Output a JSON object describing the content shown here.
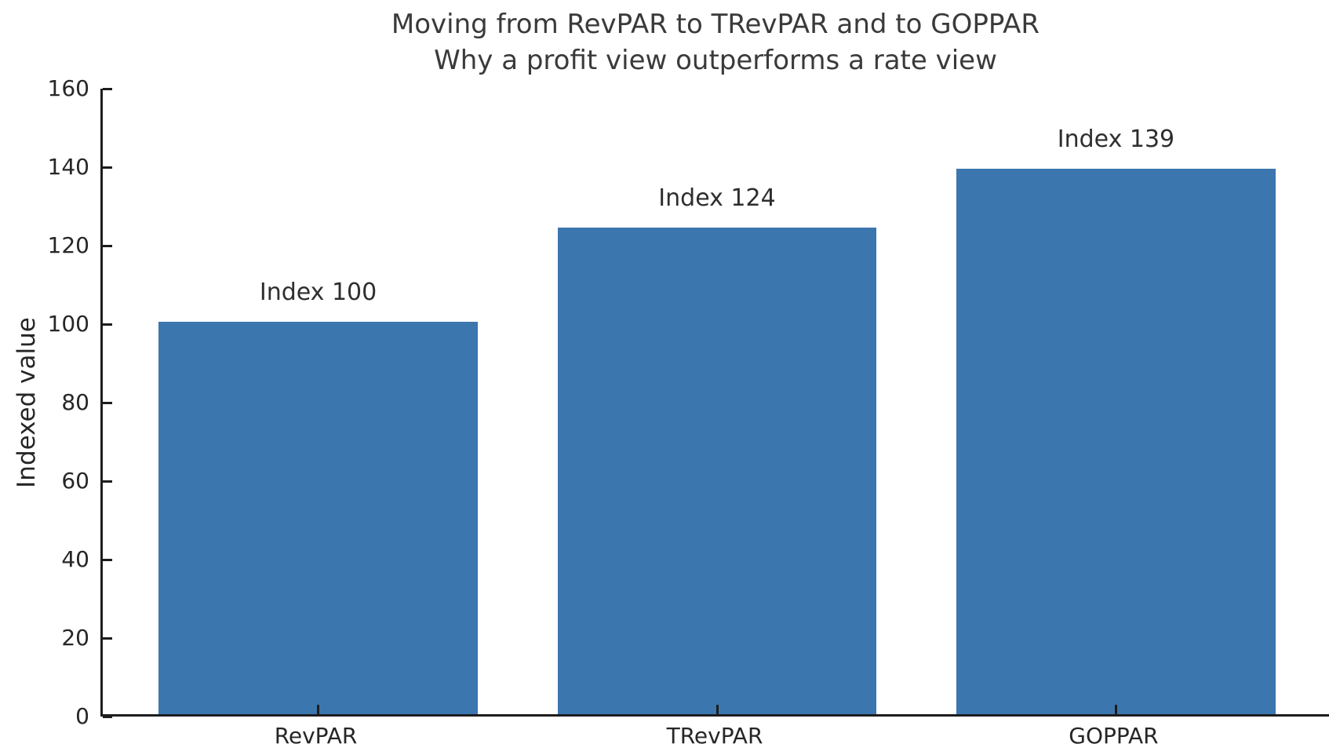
{
  "chart_data": {
    "type": "bar",
    "title": "Moving from RevPAR to TRevPAR and to GOPPAR",
    "subtitle": "Why a profit view outperforms a rate view",
    "categories": [
      "RevPAR",
      "TRevPAR",
      "GOPPAR"
    ],
    "values": [
      100,
      124,
      139
    ],
    "bar_labels": [
      "Index 100",
      "Index 124",
      "Index 139"
    ],
    "xlabel": "",
    "ylabel": "Indexed value",
    "ylim": [
      0,
      160
    ],
    "yticks": [
      0,
      20,
      40,
      60,
      80,
      100,
      120,
      140,
      160
    ],
    "grid": false,
    "legend": "none",
    "colors": {
      "bar": "#3b76af",
      "axis": "#1d1d1d",
      "tick_label": "#262626",
      "title": "#3a3a3a",
      "annotation": "#2e2e2e",
      "background": "#ffffff"
    }
  }
}
